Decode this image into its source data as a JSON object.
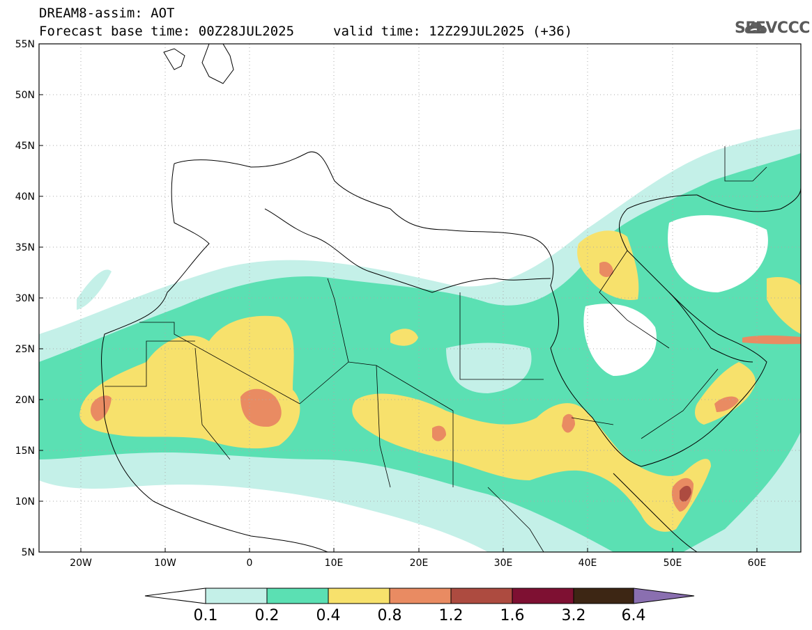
{
  "header": {
    "title": "DREAM8-assim: AOT",
    "base_time": "Forecast base time: 00Z28JUL2025",
    "valid_time": "valid time: 12Z29JUL2025 (+36)",
    "logo_text": "SEEVCCC"
  },
  "map": {
    "lat_labels": [
      "55N",
      "50N",
      "45N",
      "40N",
      "35N",
      "30N",
      "25N",
      "20N",
      "15N",
      "10N",
      "5N"
    ],
    "lon_labels": [
      "20W",
      "10W",
      "0",
      "10E",
      "20E",
      "30E",
      "40E",
      "50E",
      "60E"
    ]
  },
  "legend": {
    "levels": [
      "0.1",
      "0.2",
      "0.4",
      "0.8",
      "1.2",
      "1.6",
      "3.2",
      "6.4"
    ],
    "colors": [
      "#c4f0e8",
      "#5be0b3",
      "#f7e16c",
      "#e98b62",
      "#ad4b40",
      "#7e1032",
      "#3d2614",
      "#8a6fb0"
    ]
  }
}
